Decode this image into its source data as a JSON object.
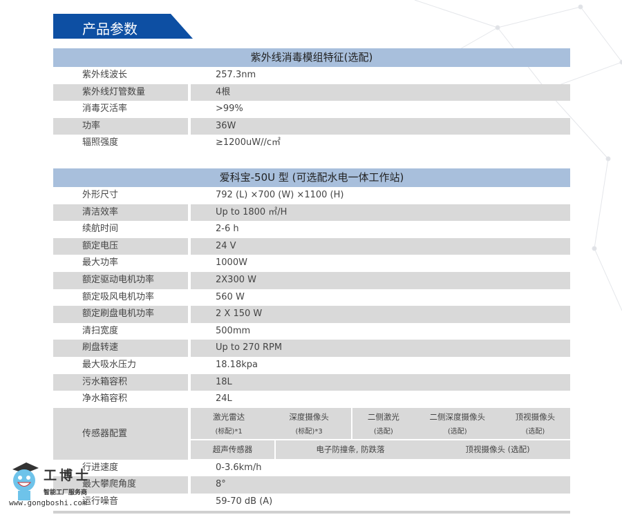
{
  "title": "产品参数",
  "section1": {
    "header": "紫外线消毒模组特征(选配)",
    "rows": [
      {
        "label": "紫外线波长",
        "value": "257.3nm"
      },
      {
        "label": "紫外线灯管数量",
        "value": "4根"
      },
      {
        "label": "消毒灭活率",
        "value": ">99%"
      },
      {
        "label": "功率",
        "value": "36W"
      },
      {
        "label": "辐照强度",
        "value": "≥1200uW//c㎡"
      }
    ]
  },
  "section2": {
    "header": "爱科宝-50U 型 (可选配水电一体工作站)",
    "rows": [
      {
        "label": "外形尺寸",
        "value": "792 (L) ×700 (W) ×1100 (H)"
      },
      {
        "label": "清洁效率",
        "value": "Up to 1800 ㎡/H"
      },
      {
        "label": "续航时间",
        "value": "2-6 h"
      },
      {
        "label": "额定电压",
        "value": "24 V"
      },
      {
        "label": "最大功率",
        "value": "1000W"
      },
      {
        "label": "额定驱动电机功率",
        "value": "2X300 W"
      },
      {
        "label": "额定吸风电机功率",
        "value": "560 W"
      },
      {
        "label": "额定刷盘电机功率",
        "value": "2 X 150 W"
      },
      {
        "label": "清扫宽度",
        "value": "500mm"
      },
      {
        "label": "刷盘转速",
        "value": "Up to 270 RPM"
      },
      {
        "label": "最大吸水压力",
        "value": "18.18kpa"
      },
      {
        "label": "污水箱容积",
        "value": "18L"
      },
      {
        "label": "净水箱容积",
        "value": "24L"
      }
    ],
    "sensor": {
      "label": "传感器配置",
      "top_a": [
        {
          "name": "激光雷达",
          "note": "(标配)*1"
        },
        {
          "name": "深度摄像头",
          "note": "(标配)*3"
        }
      ],
      "top_b": [
        {
          "name": "二侧激光",
          "note": "(选配)"
        },
        {
          "name": "二侧深度摄像头",
          "note": "(选配)"
        },
        {
          "name": "顶视摄像头",
          "note": "(选配)"
        }
      ],
      "bottom_a": "超声传感器",
      "bottom_b": [
        "电子防撞条, 防跌落",
        "顶视摄像头 (选配)"
      ]
    },
    "rows2": [
      {
        "label": "行进速度",
        "value": "0-3.6km/h"
      },
      {
        "label": "最大攀爬角度",
        "value": "8°"
      },
      {
        "label": "运行噪音",
        "value": "59-70 dB (A)"
      }
    ]
  },
  "watermark": {
    "name": "工博士",
    "subtitle": "智能工厂服务商",
    "url": "www.gongboshi.com"
  },
  "colors": {
    "title_bg": "#0d4fa3",
    "header_bg": "#a8bfdc",
    "row_gray": "#d9d9d9"
  }
}
